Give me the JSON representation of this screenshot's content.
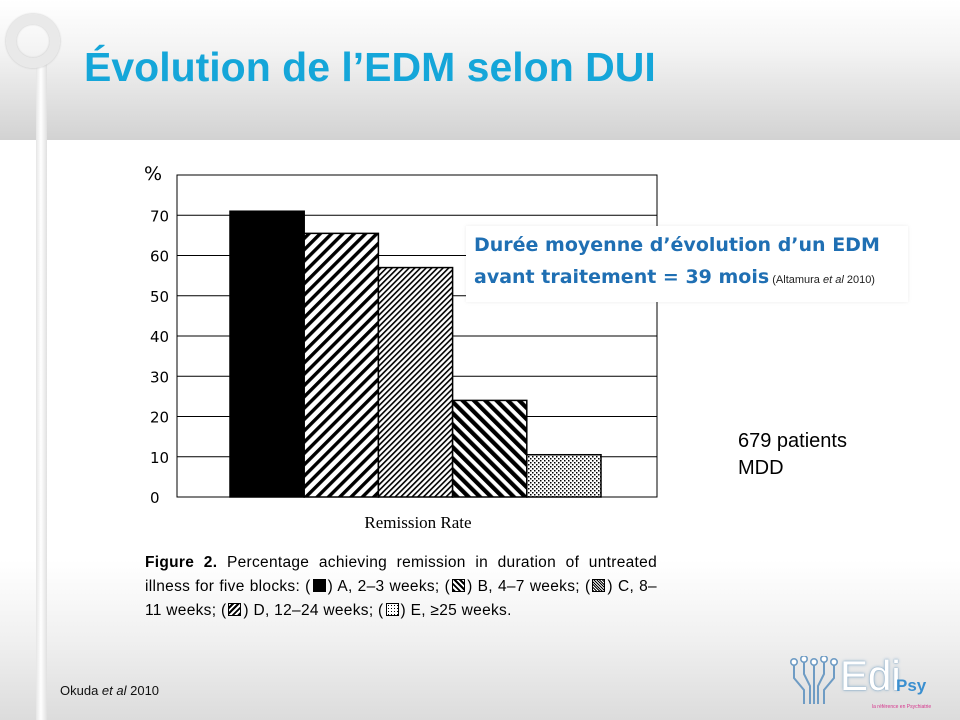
{
  "slide": {
    "title": "Évolution de l’EDM selon DUI",
    "source_prefix": "Okuda ",
    "source_italic": "et al",
    "source_suffix": " 2010"
  },
  "callout": {
    "line1": "Durée moyenne d’évolution d’un EDM",
    "line2": "avant traitement = 39 mois",
    "ref_prefix": " (Altamura ",
    "ref_italic": "et al",
    "ref_suffix": " 2010)"
  },
  "patients": {
    "line1": "679 patients",
    "line2": "MDD"
  },
  "caption": {
    "fig": "Figure 2.",
    "t1": " Percentage achieving remission in duration of untreated illness for five blocks: (",
    "t2": ") A, 2–3 weeks; (",
    "t3": ") B, 4–7 weeks; (",
    "t4": ") C, 8–11 weeks; (",
    "t5": ") D, 12–24 weeks; (",
    "t6": ") E, ≥25 weeks."
  },
  "logo": {
    "name": "Edi",
    "suffix": "Psy",
    "tagline": "la référence en Psychiatrie"
  },
  "colors": {
    "title": "#15a6d9",
    "callout_text": "#1f6fb3",
    "bar": "#000000"
  },
  "chart_data": {
    "type": "bar",
    "categories": [
      "A",
      "B",
      "C",
      "D",
      "E"
    ],
    "values": [
      71,
      65.5,
      57,
      24,
      10.5
    ],
    "patterns": [
      "solid",
      "diag-wide",
      "diag-dense",
      "diag-wide-bold",
      "dots"
    ],
    "xlabel": "Remission Rate",
    "ylabel": "%",
    "ylim": [
      0,
      80
    ],
    "yticks": [
      0,
      10,
      20,
      30,
      40,
      50,
      60,
      70
    ],
    "grid": true
  }
}
